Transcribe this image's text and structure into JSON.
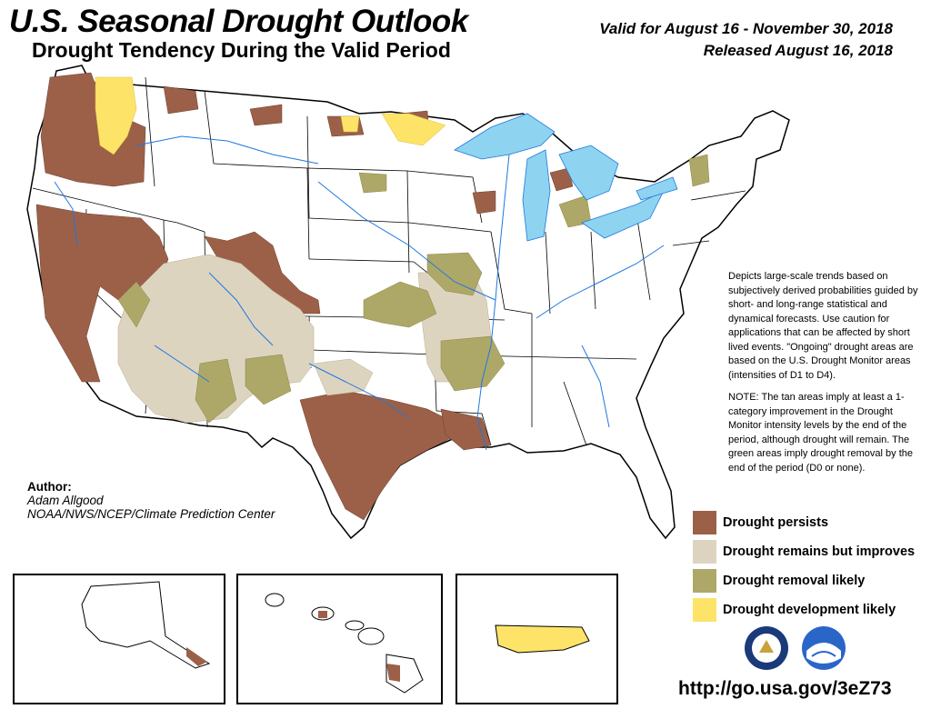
{
  "header": {
    "title": "U.S. Seasonal Drought Outlook",
    "subtitle": "Drought Tendency During the Valid Period",
    "valid_line": "Valid for August 16 - November 30, 2018",
    "released_line": "Released August 16, 2018"
  },
  "description": {
    "paragraph1": "Depicts large-scale trends based on subjectively derived probabilities guided by short- and long-range statistical and dynamical forecasts. Use caution for applications that can be affected by short lived events. \"Ongoing\" drought areas are based on the U.S. Drought Monitor areas (intensities of D1 to D4).",
    "paragraph2": "NOTE: The tan areas imply at least a 1-category improvement in the Drought Monitor intensity levels by the end of the period, although drought will remain. The green areas imply drought removal by the end of the period (D0 or none)."
  },
  "legend": [
    {
      "label": "Drought persists",
      "color": "#9c6048"
    },
    {
      "label": "Drought remains but improves",
      "color": "#ddd4c0"
    },
    {
      "label": "Drought removal likely",
      "color": "#aea868"
    },
    {
      "label": "Drought development likely",
      "color": "#fde468"
    }
  ],
  "author": {
    "heading": "Author:",
    "name": "Adam Allgood",
    "org": "NOAA/NWS/NCEP/Climate Prediction Center"
  },
  "url": "http://go.usa.gov/3eZ73",
  "colors": {
    "water": "#8ed3f0",
    "rivers": "#1e78e0",
    "persists": "#9c6048",
    "improves": "#ddd4c0",
    "removal": "#aea868",
    "development": "#fde468"
  },
  "logos": [
    "doc-seal-icon",
    "noaa-logo-icon"
  ]
}
